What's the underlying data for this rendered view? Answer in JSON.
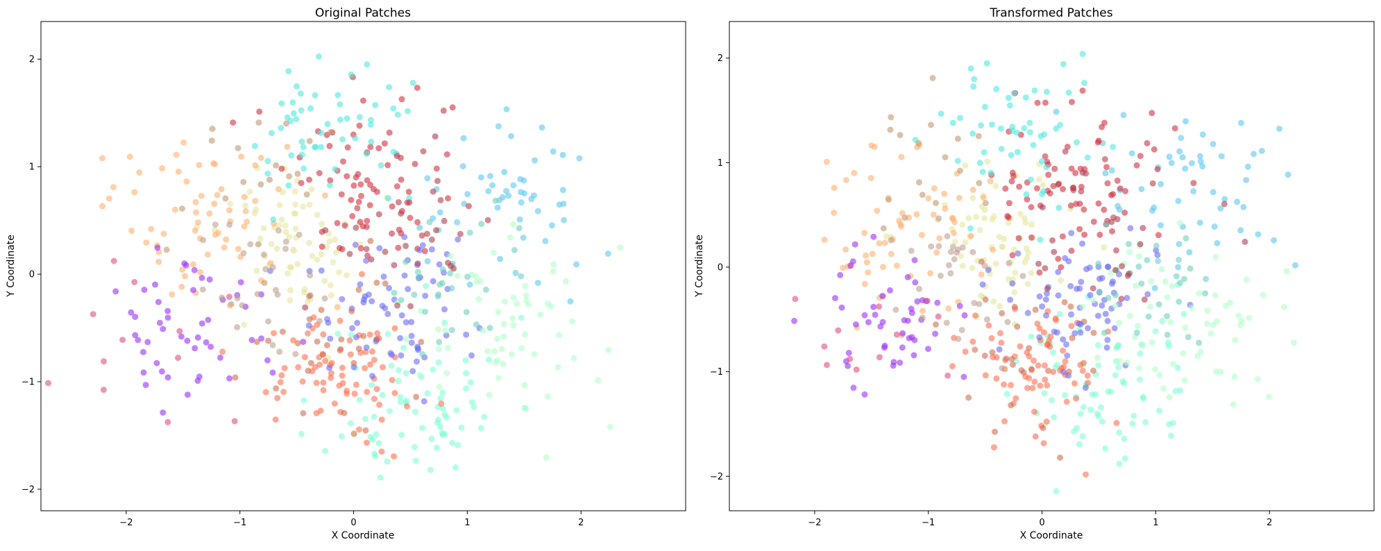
{
  "chart_data": [
    {
      "type": "scatter",
      "title": "Original Patches",
      "xlabel": "X Coordinate",
      "ylabel": "Y Coordinate",
      "xlim": [
        -2.75,
        2.92
      ],
      "ylim": [
        -2.2,
        2.35
      ],
      "xticks": [
        -2,
        -1,
        0,
        1,
        2
      ],
      "yticks": [
        -2,
        -1,
        0,
        1,
        2
      ],
      "grid": false,
      "legend": "none",
      "colormap": "rainbow",
      "clusters": [
        {
          "color": "#7fffd4",
          "center": [
            0.55,
            -1.2
          ],
          "n": 75,
          "spread": 0.4,
          "seed": 11
        },
        {
          "color": "#e6e6a0",
          "center": [
            -0.45,
            0.3
          ],
          "n": 70,
          "spread": 0.35,
          "seed": 12
        },
        {
          "color": "#5dc8f0",
          "center": [
            1.3,
            0.7
          ],
          "n": 55,
          "spread": 0.4,
          "seed": 13
        },
        {
          "color": "#d03040",
          "center": [
            0.25,
            0.85
          ],
          "n": 80,
          "spread": 0.45,
          "seed": 14
        },
        {
          "color": "#ff7050",
          "center": [
            -0.05,
            -0.9
          ],
          "n": 75,
          "spread": 0.35,
          "seed": 15
        },
        {
          "color": "#6a6cf5",
          "center": [
            0.35,
            -0.3
          ],
          "n": 70,
          "spread": 0.35,
          "seed": 16
        },
        {
          "color": "#b0ffc8",
          "center": [
            1.3,
            -0.6
          ],
          "n": 65,
          "spread": 0.4,
          "seed": 17
        },
        {
          "color": "#ffb070",
          "center": [
            -1.3,
            0.5
          ],
          "n": 65,
          "spread": 0.4,
          "seed": 18
        },
        {
          "color": "#9a30f5",
          "center": [
            -1.4,
            -0.45
          ],
          "n": 50,
          "spread": 0.35,
          "seed": 19
        },
        {
          "color": "#50e8e0",
          "center": [
            -0.25,
            1.35
          ],
          "n": 55,
          "spread": 0.35,
          "seed": 20
        },
        {
          "color": "#c0a090",
          "center": [
            -0.75,
            -0.15
          ],
          "n": 30,
          "spread": 0.35,
          "seed": 21
        },
        {
          "color": "#d07050",
          "center": [
            -0.3,
            -0.7
          ],
          "n": 30,
          "spread": 0.4,
          "seed": 22
        },
        {
          "color": "#e05080",
          "center": [
            -1.7,
            -0.6
          ],
          "n": 12,
          "spread": 0.45,
          "seed": 23
        },
        {
          "color": "#c09a70",
          "center": [
            -1.0,
            0.85
          ],
          "n": 18,
          "spread": 0.4,
          "seed": 24
        },
        {
          "color": "#70d0c0",
          "center": [
            0.9,
            -0.15
          ],
          "n": 30,
          "spread": 0.3,
          "seed": 25
        },
        {
          "color": "#b04050",
          "center": [
            0.55,
            0.5
          ],
          "n": 30,
          "spread": 0.4,
          "seed": 26
        }
      ]
    },
    {
      "type": "scatter",
      "title": "Transformed Patches",
      "xlabel": "X Coordinate",
      "ylabel": "Y Coordinate",
      "xlim": [
        -2.75,
        2.92
      ],
      "ylim": [
        -2.33,
        2.35
      ],
      "xticks": [
        -2,
        -1,
        0,
        1,
        2
      ],
      "yticks": [
        -2,
        -1,
        0,
        1,
        2
      ],
      "grid": false,
      "legend": "none",
      "colormap": "rainbow",
      "clusters": [
        {
          "color": "#7fffd4",
          "center": [
            0.55,
            -1.15
          ],
          "n": 75,
          "spread": 0.4,
          "seed": 31
        },
        {
          "color": "#e6e6a0",
          "center": [
            -0.4,
            0.3
          ],
          "n": 70,
          "spread": 0.35,
          "seed": 32
        },
        {
          "color": "#5dc8f0",
          "center": [
            1.3,
            0.7
          ],
          "n": 55,
          "spread": 0.4,
          "seed": 33
        },
        {
          "color": "#d03040",
          "center": [
            0.25,
            0.8
          ],
          "n": 80,
          "spread": 0.45,
          "seed": 34
        },
        {
          "color": "#ff7050",
          "center": [
            -0.05,
            -0.95
          ],
          "n": 75,
          "spread": 0.35,
          "seed": 35
        },
        {
          "color": "#6a6cf5",
          "center": [
            0.35,
            -0.3
          ],
          "n": 70,
          "spread": 0.35,
          "seed": 36
        },
        {
          "color": "#b0ffc8",
          "center": [
            1.3,
            -0.55
          ],
          "n": 65,
          "spread": 0.4,
          "seed": 37
        },
        {
          "color": "#ffb070",
          "center": [
            -1.25,
            0.45
          ],
          "n": 65,
          "spread": 0.4,
          "seed": 38
        },
        {
          "color": "#9a30f5",
          "center": [
            -1.35,
            -0.45
          ],
          "n": 50,
          "spread": 0.35,
          "seed": 39
        },
        {
          "color": "#50e8e0",
          "center": [
            -0.25,
            1.3
          ],
          "n": 55,
          "spread": 0.35,
          "seed": 40
        },
        {
          "color": "#c0a090",
          "center": [
            -0.75,
            -0.15
          ],
          "n": 30,
          "spread": 0.35,
          "seed": 41
        },
        {
          "color": "#d07050",
          "center": [
            -0.3,
            -0.75
          ],
          "n": 30,
          "spread": 0.4,
          "seed": 42
        },
        {
          "color": "#e05080",
          "center": [
            -1.6,
            -0.6
          ],
          "n": 12,
          "spread": 0.45,
          "seed": 43
        },
        {
          "color": "#c09a70",
          "center": [
            -1.0,
            0.85
          ],
          "n": 18,
          "spread": 0.4,
          "seed": 44
        },
        {
          "color": "#70d0c0",
          "center": [
            0.9,
            -0.15
          ],
          "n": 30,
          "spread": 0.3,
          "seed": 45
        },
        {
          "color": "#b04050",
          "center": [
            0.6,
            0.45
          ],
          "n": 30,
          "spread": 0.4,
          "seed": 46
        }
      ]
    }
  ]
}
